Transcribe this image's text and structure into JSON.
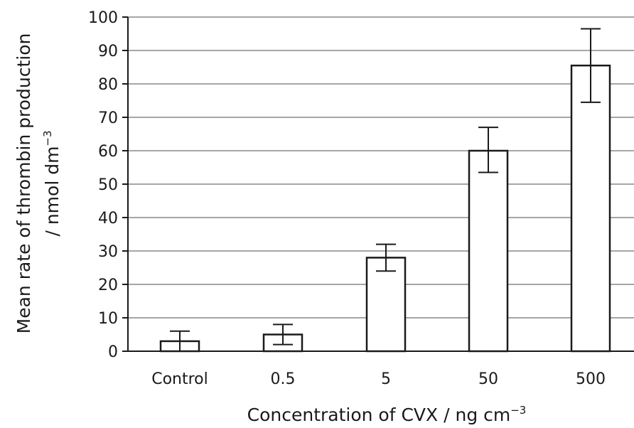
{
  "chart_data": {
    "type": "bar",
    "categories": [
      "Control",
      "0.5",
      "5",
      "50",
      "500"
    ],
    "series": [
      {
        "values": [
          3,
          5,
          28,
          60,
          85.5
        ],
        "error_low": [
          0,
          2,
          24,
          53.5,
          74.5
        ],
        "error_high": [
          6,
          8,
          32,
          67,
          96.5
        ]
      }
    ],
    "xlabel": {
      "main": "Concentration of CVX / ng cm",
      "sup": "−3"
    },
    "ylabel": {
      "line1": "Mean rate of thrombin production",
      "line2_main": "/ nmol dm",
      "line2_sup": "−3"
    },
    "ylim": [
      0,
      100
    ],
    "yticks": [
      0,
      10,
      20,
      30,
      40,
      50,
      60,
      70,
      80,
      90,
      100
    ],
    "grid": true,
    "legend": "none",
    "colors": {
      "bar_fill": "#ffffff",
      "bar_stroke": "#1a1a1a",
      "grid": "#a6a6a6"
    }
  }
}
